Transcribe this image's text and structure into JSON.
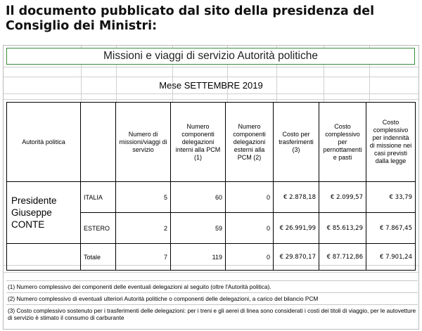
{
  "headline": "Il documento pubblicato dal sito della presidenza del Consiglio dei Ministri:",
  "sheet": {
    "title": "Missioni e viaggi di servizio Autorità politiche",
    "month": "Mese SETTEMBRE 2019",
    "columns": [
      "Autorità politica",
      "",
      "Numero di missioni/viaggi di servizio",
      "Numero componenti delegazioni interni alla PCM (1)",
      "Numero componenti delegazioni esterni alla PCM (2)",
      "Costo per trasferimenti (3)",
      "Costo complessivo per pernottamenti e pasti",
      "Costo complessivo per indennità di missione nei casi previsti dalla legge"
    ],
    "person": "Presidente Giuseppe CONTE",
    "rows": [
      {
        "label": "ITALIA",
        "missions": "5",
        "internal": "60",
        "external": "0",
        "transfer": "€ 2.878,18",
        "lodging": "€ 2.099,57",
        "allowance": "€ 33,79"
      },
      {
        "label": "ESTERO",
        "missions": "2",
        "internal": "59",
        "external": "0",
        "transfer": "€ 26.991,99",
        "lodging": "€ 85.613,29",
        "allowance": "€ 7.867,45"
      },
      {
        "label": "Totale",
        "missions": "7",
        "internal": "119",
        "external": "0",
        "transfer": "€ 29.870,17",
        "lodging": "€ 87.712,86",
        "allowance": "€ 7.901,24"
      }
    ],
    "notes": [
      "(1) Numero complessivo dei componenti delle eventuali delegazioni al seguito (oltre l'Autorità politica).",
      "(2) Numero complessivo di eventuali ulteriori Autorità politiche o componenti delle delegazioni, a carico del bilancio PCM",
      "(3) Costo complessivo sostenuto per i trasferimenti delle delegazioni: per i treni e gli aerei di linea sono considerati i costi dei titoli di viaggio, per le autovetture di servizio è stimato il consumo di carburante"
    ]
  }
}
